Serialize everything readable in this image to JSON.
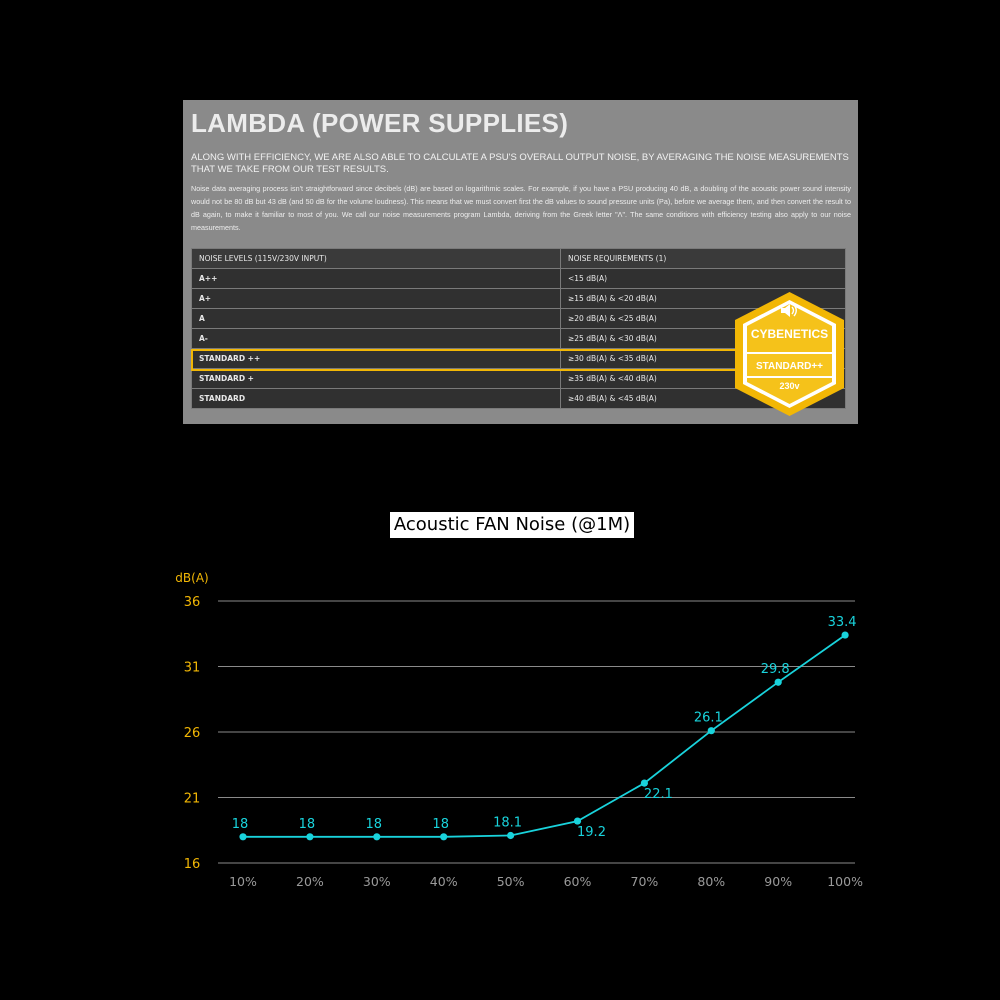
{
  "panel": {
    "title": "LAMBDA (POWER SUPPLIES)",
    "lead": "ALONG WITH EFFICIENCY, WE ARE ALSO ABLE TO CALCULATE A PSU'S OVERALL OUTPUT NOISE, BY AVERAGING THE NOISE MEASUREMENTS THAT WE TAKE FROM OUR TEST RESULTS.",
    "body": "Noise data averaging process isn't straightforward since decibels (dB) are based on logarithmic scales. For example, if you have a PSU producing 40 dB, a doubling of the acoustic power sound intensity would not be 80 dB but 43 dB (and 50 dB for the volume loudness). This means that we must convert first the dB values to sound pressure units (Pa), before we average them, and then convert the result to dB again, to make it familiar to most of you. We call our noise measurements program Lambda, deriving from the Greek letter \"Λ\". The same conditions with efficiency testing also apply to our noise measurements.",
    "table": {
      "headers": [
        "NOISE LEVELS (115V/230V INPUT)",
        "NOISE REQUIREMENTS (1)"
      ],
      "rows": [
        {
          "level": "A++",
          "req": "<15 dB(A)"
        },
        {
          "level": "A+",
          "req": "≥15 dB(A) & <20 dB(A)"
        },
        {
          "level": "A",
          "req": "≥20 dB(A) & <25 dB(A)"
        },
        {
          "level": "A-",
          "req": "≥25 dB(A) & <30 dB(A)"
        },
        {
          "level": "STANDARD ++",
          "req": "≥30 dB(A) & <35 dB(A)"
        },
        {
          "level": "STANDARD +",
          "req": "≥35 dB(A) & <40 dB(A)"
        },
        {
          "level": "STANDARD",
          "req": "≥40 dB(A) & <45 dB(A)"
        }
      ],
      "highlighted_row": 4
    }
  },
  "badge": {
    "brand": "CYBENETICS",
    "rating": "STANDARD++",
    "voltage": "230v",
    "colors": {
      "outer": "#f2b705",
      "inner": "#ffffff",
      "ribbon": "#f5c21a"
    },
    "icon": "speaker-icon"
  },
  "colors": {
    "accent": "#f2b705",
    "line": "#19d3dc",
    "grid": "#8a8a8a",
    "tick_x": "#9a9a9a"
  },
  "chart_data": {
    "type": "line",
    "title": "Acoustic FAN Noise (@1M)",
    "ylabel": "dB(A)",
    "xlabel": "",
    "categories": [
      "10%",
      "20%",
      "30%",
      "40%",
      "50%",
      "60%",
      "70%",
      "80%",
      "90%",
      "100%"
    ],
    "series": [
      {
        "values": [
          18,
          18,
          18,
          18,
          18.1,
          19.2,
          22.1,
          26.1,
          29.8,
          33.4
        ]
      }
    ],
    "value_labels": [
      "18",
      "18",
      "18",
      "18",
      "18.1",
      "19.2",
      "22.1",
      "26.1",
      "29.8",
      "33.4"
    ],
    "label_side": [
      "above",
      "above",
      "above",
      "above",
      "above",
      "below",
      "below",
      "above",
      "above",
      "above"
    ],
    "yticks": [
      16,
      21,
      26,
      31,
      36
    ],
    "ylim": [
      16,
      36
    ],
    "grid": true,
    "legend": "none"
  }
}
